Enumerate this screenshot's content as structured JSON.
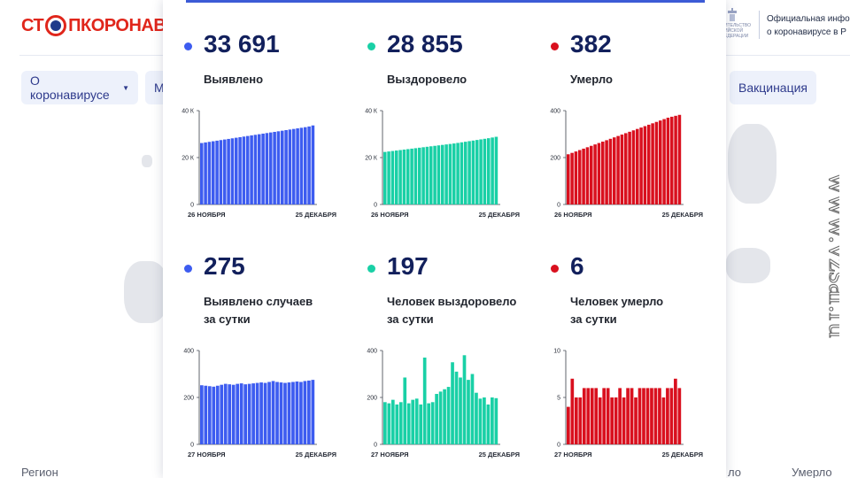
{
  "header": {
    "logo_text_1": "СТ",
    "logo_text_2": "ПКОРОНАВИ",
    "gov_title_line1": "Официальная инфо",
    "gov_title_line2": "о коронавирусе в Р",
    "gov_small_1": "ИТЕЛЬСТВО",
    "gov_small_2": "ИЙСКОЙ",
    "gov_small_3": "ЕДЕРАЦИИ"
  },
  "nav": {
    "about_label": "О коронавирусе",
    "partial_label": "М",
    "vaccination_label": "Вакцинация"
  },
  "footer": {
    "region_label": "Регион",
    "partial_label": "ло",
    "died_label": "Умерло"
  },
  "colors": {
    "blue": "#3d5cf0",
    "green": "#19d0a6",
    "red": "#d9101e"
  },
  "stats": [
    {
      "value": "33 691",
      "label1": "Выявлено",
      "label2": "",
      "color": "blue"
    },
    {
      "value": "28 855",
      "label1": "Выздоровело",
      "label2": "",
      "color": "green"
    },
    {
      "value": "382",
      "label1": "Умерло",
      "label2": "",
      "color": "red"
    },
    {
      "value": "275",
      "label1": "Выявлено случаев",
      "label2": "за сутки",
      "color": "blue"
    },
    {
      "value": "197",
      "label1": "Человек выздоровело",
      "label2": "за сутки",
      "color": "green"
    },
    {
      "value": "6",
      "label1": "Человек умерло",
      "label2": "за сутки",
      "color": "red"
    }
  ],
  "watermark": "www.vzsar.ru",
  "chart_data": [
    {
      "type": "bar",
      "color": "blue",
      "ylim": [
        0,
        40000
      ],
      "yticks": [
        "0",
        "20 К",
        "40 К"
      ],
      "xlabel_start": "26 НОЯБРЯ",
      "xlabel_end": "25 ДЕКАБРЯ",
      "values": [
        26200,
        26450,
        26700,
        26950,
        27200,
        27450,
        27700,
        27950,
        28200,
        28450,
        28700,
        28950,
        29200,
        29450,
        29700,
        29950,
        30200,
        30450,
        30700,
        30950,
        31200,
        31450,
        31700,
        31950,
        32200,
        32450,
        32700,
        32950,
        33250,
        33691
      ]
    },
    {
      "type": "bar",
      "color": "green",
      "ylim": [
        0,
        40000
      ],
      "yticks": [
        "0",
        "20 К",
        "40 К"
      ],
      "xlabel_start": "26 НОЯБРЯ",
      "xlabel_end": "25 ДЕКАБРЯ",
      "values": [
        22400,
        22600,
        22800,
        23000,
        23200,
        23400,
        23600,
        23800,
        24000,
        24200,
        24400,
        24600,
        24800,
        25000,
        25200,
        25400,
        25600,
        25800,
        26000,
        26250,
        26500,
        26750,
        27000,
        27250,
        27500,
        27750,
        28000,
        28250,
        28550,
        28855
      ]
    },
    {
      "type": "bar",
      "color": "red",
      "ylim": [
        0,
        400
      ],
      "yticks": [
        "0",
        "200",
        "400"
      ],
      "xlabel_start": "26 НОЯБРЯ",
      "xlabel_end": "25 ДЕКАБРЯ",
      "values": [
        214,
        220,
        226,
        232,
        238,
        244,
        250,
        256,
        262,
        268,
        274,
        280,
        286,
        292,
        298,
        304,
        310,
        316,
        322,
        328,
        334,
        340,
        346,
        352,
        358,
        364,
        370,
        374,
        378,
        382
      ]
    },
    {
      "type": "bar",
      "color": "blue",
      "ylim": [
        0,
        400
      ],
      "yticks": [
        "0",
        "200",
        "400"
      ],
      "xlabel_start": "27 НОЯБРЯ",
      "xlabel_end": "25 ДЕКАБРЯ",
      "values": [
        252,
        250,
        248,
        246,
        250,
        254,
        258,
        256,
        254,
        258,
        260,
        256,
        258,
        260,
        262,
        264,
        262,
        266,
        270,
        266,
        264,
        262,
        264,
        266,
        268,
        266,
        270,
        272,
        275
      ]
    },
    {
      "type": "bar",
      "color": "green",
      "ylim": [
        0,
        400
      ],
      "yticks": [
        "0",
        "200",
        "400"
      ],
      "xlabel_start": "27 НОЯБРЯ",
      "xlabel_end": "25 ДЕКАБРЯ",
      "values": [
        180,
        175,
        190,
        170,
        180,
        285,
        175,
        190,
        195,
        170,
        370,
        175,
        180,
        215,
        225,
        235,
        245,
        350,
        310,
        285,
        380,
        275,
        300,
        220,
        195,
        200,
        170,
        200,
        197
      ]
    },
    {
      "type": "bar",
      "color": "red",
      "ylim": [
        0,
        10
      ],
      "yticks": [
        "0",
        "5",
        "10"
      ],
      "xlabel_start": "27 НОЯБРЯ",
      "xlabel_end": "25 ДЕКАБРЯ",
      "values": [
        4,
        7,
        5,
        5,
        6,
        6,
        6,
        6,
        5,
        6,
        6,
        5,
        5,
        6,
        5,
        6,
        6,
        5,
        6,
        6,
        6,
        6,
        6,
        6,
        5,
        6,
        6,
        7,
        6
      ]
    }
  ]
}
